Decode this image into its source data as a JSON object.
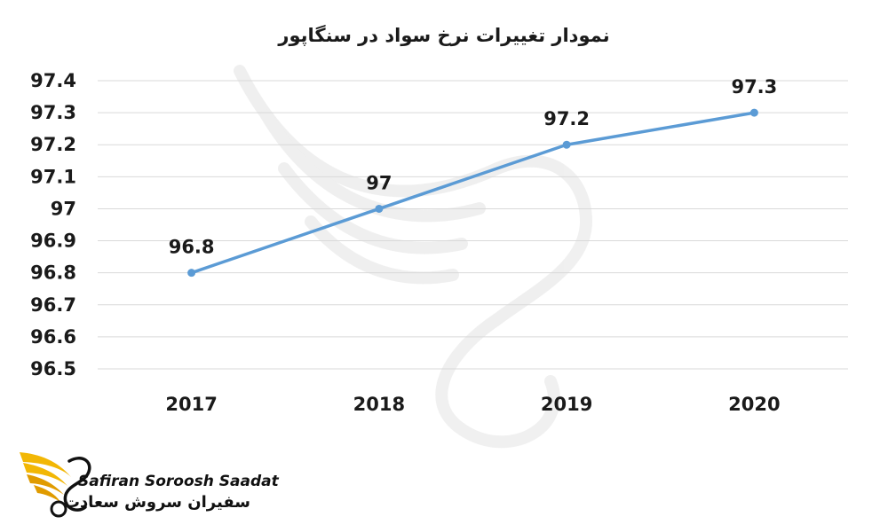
{
  "chart_data": {
    "type": "line",
    "title": "نمودار تغییرات نرخ سواد در سنگاپور",
    "categories": [
      "2017",
      "2018",
      "2019",
      "2020"
    ],
    "series": [
      {
        "values": [
          96.8,
          97,
          97.2,
          97.3
        ],
        "data_labels": [
          "96.8",
          "97",
          "97.2",
          "97.3"
        ],
        "color": "#5b9bd5"
      }
    ],
    "ylim": [
      96.5,
      97.4
    ],
    "yticks": [
      "97.4",
      "97.3",
      "97.2",
      "97.1",
      "97",
      "96.9",
      "96.8",
      "96.7",
      "96.6",
      "96.5"
    ],
    "grid": true,
    "legend": "none"
  },
  "logo": {
    "name_en": "Safiran Soroosh Saadat",
    "name_fa": "سفیران سروش سعادت",
    "accent_color": "#f2b705"
  }
}
